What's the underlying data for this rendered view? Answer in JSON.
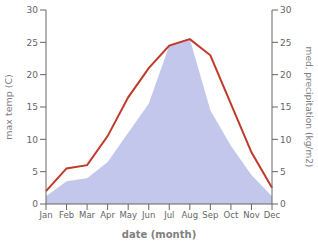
{
  "chart_data": {
    "type": "line",
    "categories": [
      "Jan",
      "Feb",
      "Mar",
      "Apr",
      "May",
      "Jun",
      "Jul",
      "Aug",
      "Sep",
      "Oct",
      "Nov",
      "Dec"
    ],
    "series": [
      {
        "type": "area",
        "axis": "y2",
        "color": "#b8bde8",
        "values": [
          1.2,
          3.5,
          4.0,
          6.5,
          11.0,
          15.5,
          24.5,
          25.5,
          14.5,
          9.0,
          4.5,
          1.2
        ]
      },
      {
        "type": "line",
        "color": "#c0392b",
        "values": [
          2.0,
          5.5,
          6.0,
          10.5,
          16.5,
          21.0,
          24.5,
          25.5,
          23.0,
          15.5,
          8.0,
          2.5
        ]
      }
    ],
    "xlabel": "date (month)",
    "ylabel": "max temp (C)",
    "y2label": "med. precipitation (kg/m2)",
    "ylim": [
      0,
      30
    ],
    "yticks": [
      0,
      5,
      10,
      15,
      20,
      25,
      30
    ],
    "y2lim": [
      0,
      30
    ],
    "y2ticks": [
      0,
      5,
      10,
      15,
      20,
      25,
      30
    ],
    "grid": false
  }
}
